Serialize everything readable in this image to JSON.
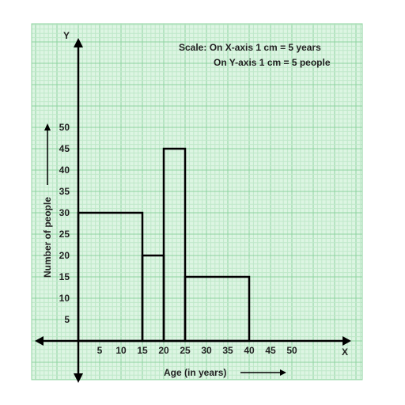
{
  "chart_data": {
    "type": "bar",
    "variant": "histogram",
    "bins": [
      {
        "from": 0,
        "to": 15,
        "value": 30
      },
      {
        "from": 15,
        "to": 20,
        "value": 20
      },
      {
        "from": 20,
        "to": 25,
        "value": 45
      },
      {
        "from": 25,
        "to": 40,
        "value": 15
      }
    ],
    "x_ticks": [
      5,
      10,
      15,
      20,
      25,
      30,
      35,
      40,
      45,
      50
    ],
    "y_ticks": [
      5,
      10,
      15,
      20,
      25,
      30,
      35,
      40,
      45,
      50
    ],
    "xlim": [
      0,
      50
    ],
    "ylim": [
      0,
      50
    ],
    "xlabel": "Age (in years)",
    "ylabel": "Number of people",
    "x_axis_letter": "X",
    "y_axis_letter": "Y",
    "scale_line1": "Scale: On X-axis 1 cm = 5 years",
    "scale_line2": "On Y-axis 1 cm = 5 people",
    "grid": true,
    "colors": {
      "grid_minor": "#bfe8c9",
      "grid_major": "#8fd3a0",
      "paper": "#ddf5e3",
      "bars": "#000000"
    }
  }
}
